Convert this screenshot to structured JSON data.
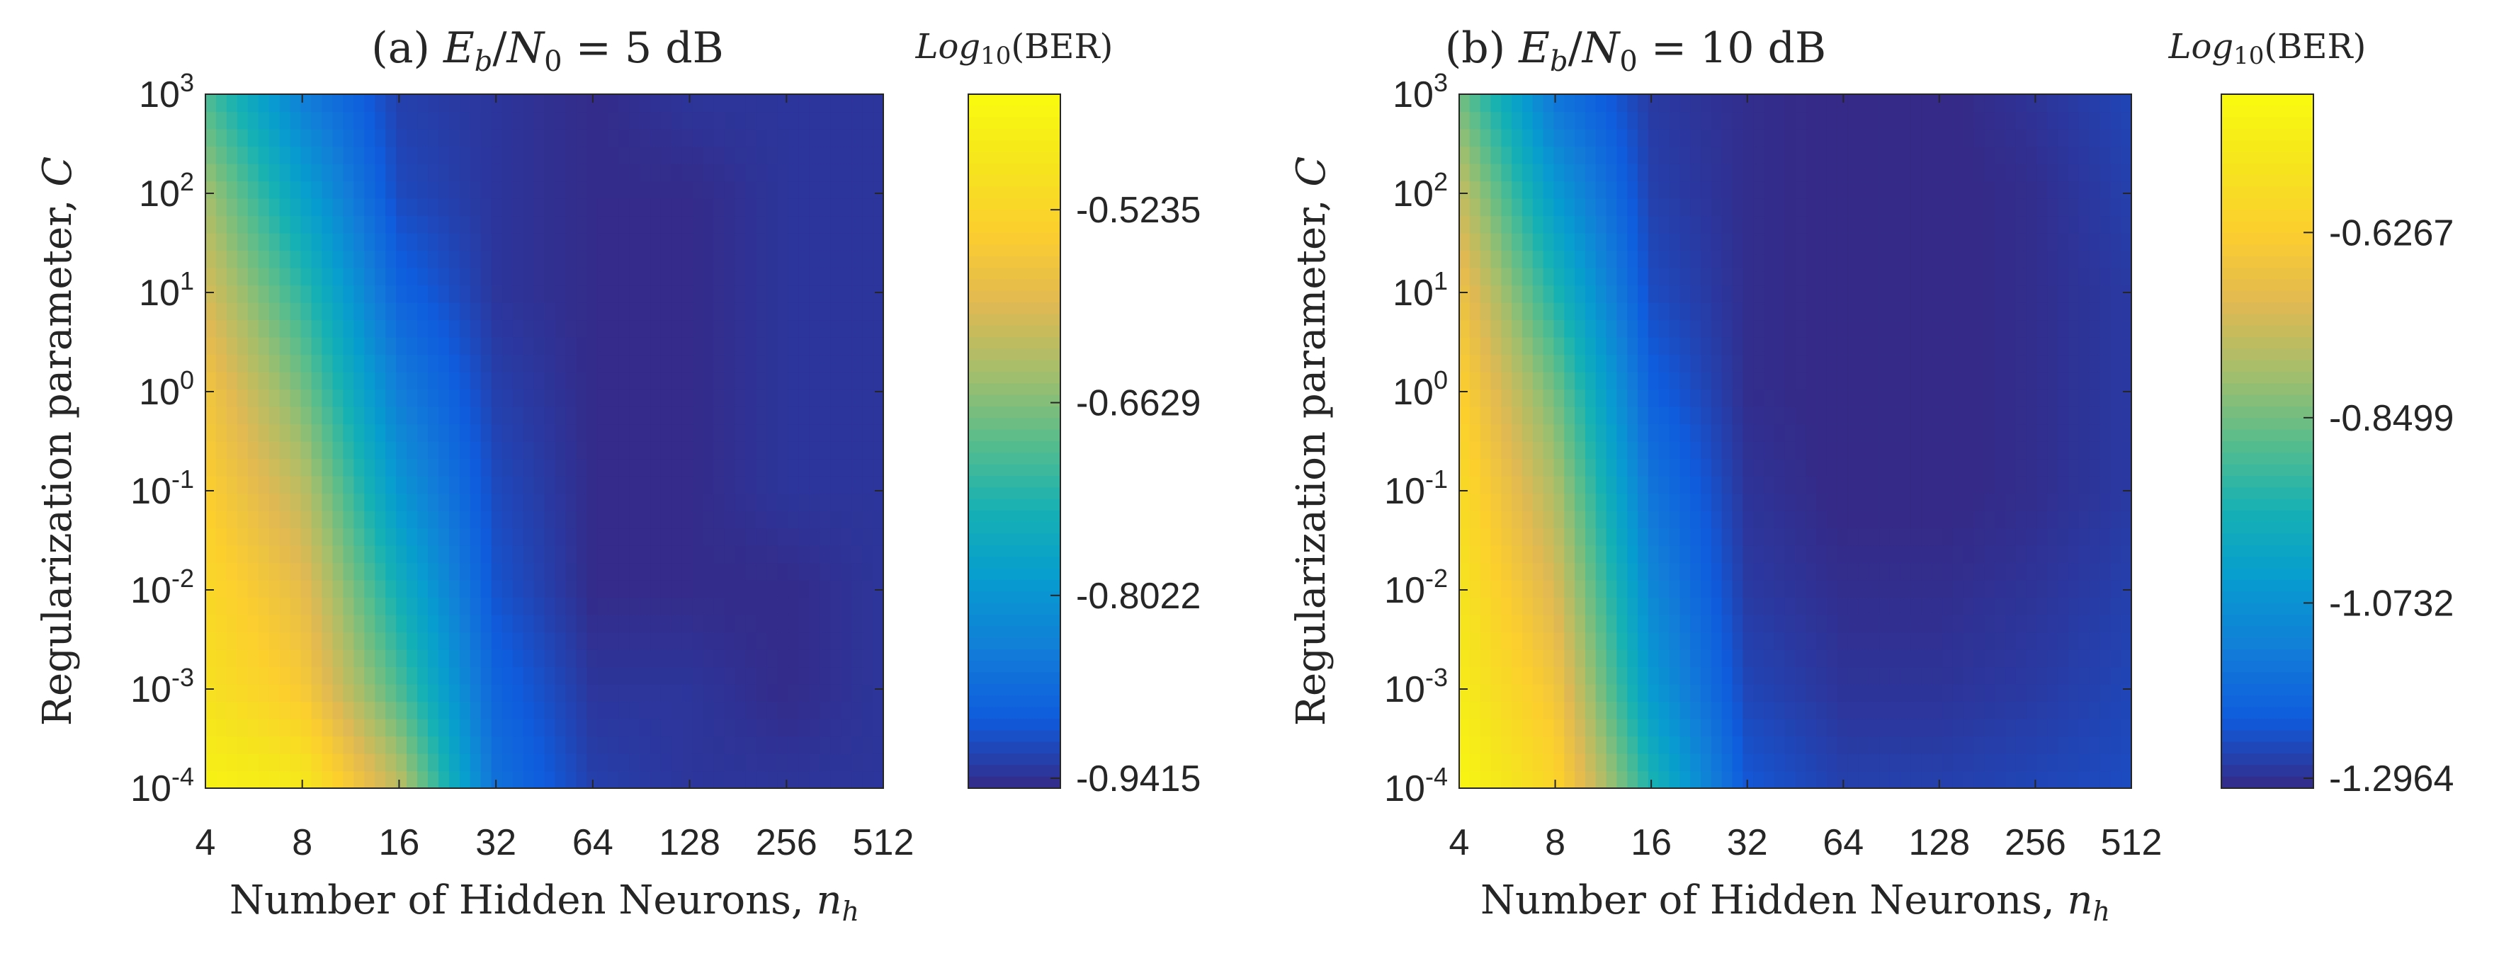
{
  "figure": {
    "panels": [
      {
        "title_prefix": "(a)",
        "title_expr": "E_b/N_0 = 5 dB"
      },
      {
        "title_prefix": "(b)",
        "title_expr": "E_b/N_0 = 10 dB"
      }
    ]
  },
  "chart_data": [
    {
      "type": "heatmap",
      "title": "(a) E_b/N_0 = 5 dB",
      "xlabel": "Number of Hidden Neurons, n_h",
      "ylabel": "Regularization parameter, C",
      "x_scale": "log2",
      "y_scale": "log10",
      "x_ticks": [
        4,
        8,
        16,
        32,
        64,
        128,
        256,
        512
      ],
      "x_tick_labels": [
        "4",
        "8",
        "16",
        "32",
        "64",
        "128",
        "256",
        "512"
      ],
      "y_tick_exponents": [
        -4,
        -3,
        -2,
        -1,
        0,
        1,
        2,
        3
      ],
      "y_tick_labels": [
        "10^-4",
        "10^-3",
        "10^-2",
        "10^-1",
        "10^0",
        "10^1",
        "10^2",
        "10^3"
      ],
      "xlim": [
        4,
        512
      ],
      "ylim": [
        0.0001,
        1000
      ],
      "colorbar": {
        "label": "Log10(BER)",
        "ticks": [
          -0.5235,
          -0.6629,
          -0.8022,
          -0.9415
        ],
        "tick_labels": [
          "-0.5235",
          "-0.6629",
          "-0.8022",
          "-0.9415"
        ],
        "range": [
          -0.9415,
          -0.44
        ]
      },
      "z_grid": [
        [
          -0.46,
          -0.48,
          -0.62,
          -0.86,
          -0.92,
          -0.93,
          -0.93,
          -0.93
        ],
        [
          -0.5,
          -0.55,
          -0.7,
          -0.88,
          -0.93,
          -0.93,
          -0.94,
          -0.93
        ],
        [
          -0.52,
          -0.58,
          -0.75,
          -0.9,
          -0.94,
          -0.94,
          -0.94,
          -0.93
        ],
        [
          -0.54,
          -0.62,
          -0.8,
          -0.91,
          -0.94,
          -0.94,
          -0.93,
          -0.93
        ],
        [
          -0.56,
          -0.67,
          -0.84,
          -0.92,
          -0.94,
          -0.94,
          -0.93,
          -0.93
        ],
        [
          -0.6,
          -0.72,
          -0.88,
          -0.93,
          -0.94,
          -0.94,
          -0.93,
          -0.93
        ],
        [
          -0.64,
          -0.78,
          -0.91,
          -0.93,
          -0.94,
          -0.94,
          -0.93,
          -0.93
        ],
        [
          -0.7,
          -0.84,
          -0.92,
          -0.93,
          -0.94,
          -0.93,
          -0.93,
          -0.93
        ]
      ]
    },
    {
      "type": "heatmap",
      "title": "(b) E_b/N_0 = 10 dB",
      "xlabel": "Number of Hidden Neurons, n_h",
      "ylabel": "Regularization parameter, C",
      "x_scale": "log2",
      "y_scale": "log10",
      "x_ticks": [
        4,
        8,
        16,
        32,
        64,
        128,
        256,
        512
      ],
      "x_tick_labels": [
        "4",
        "8",
        "16",
        "32",
        "64",
        "128",
        "256",
        "512"
      ],
      "y_tick_exponents": [
        -4,
        -3,
        -2,
        -1,
        0,
        1,
        2,
        3
      ],
      "y_tick_labels": [
        "10^-4",
        "10^-3",
        "10^-2",
        "10^-1",
        "10^0",
        "10^1",
        "10^2",
        "10^3"
      ],
      "xlim": [
        4,
        512
      ],
      "ylim": [
        0.0001,
        1000
      ],
      "colorbar": {
        "label": "Log10(BER)",
        "ticks": [
          -0.6267,
          -0.8499,
          -1.0732,
          -1.2964
        ],
        "tick_labels": [
          "-0.6267",
          "-0.8499",
          "-1.0732",
          "-1.2964"
        ],
        "range": [
          -1.2964,
          -0.46
        ]
      },
      "z_grid": [
        [
          -0.48,
          -0.6,
          -0.95,
          -1.22,
          -1.26,
          -1.26,
          -1.25,
          -1.24
        ],
        [
          -0.52,
          -0.66,
          -1.05,
          -1.25,
          -1.28,
          -1.28,
          -1.27,
          -1.25
        ],
        [
          -0.55,
          -0.72,
          -1.1,
          -1.27,
          -1.29,
          -1.29,
          -1.28,
          -1.26
        ],
        [
          -0.58,
          -0.78,
          -1.15,
          -1.28,
          -1.3,
          -1.3,
          -1.29,
          -1.27
        ],
        [
          -0.62,
          -0.85,
          -1.2,
          -1.29,
          -1.3,
          -1.3,
          -1.29,
          -1.27
        ],
        [
          -0.67,
          -0.95,
          -1.24,
          -1.29,
          -1.3,
          -1.3,
          -1.29,
          -1.27
        ],
        [
          -0.75,
          -1.05,
          -1.26,
          -1.29,
          -1.3,
          -1.3,
          -1.29,
          -1.26
        ],
        [
          -0.85,
          -1.15,
          -1.27,
          -1.29,
          -1.3,
          -1.3,
          -1.28,
          -1.25
        ]
      ]
    }
  ]
}
